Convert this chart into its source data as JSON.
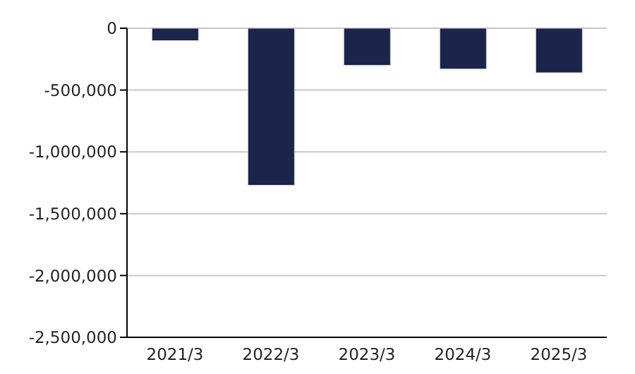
{
  "chart_data": {
    "type": "bar",
    "categories": [
      "2021/3",
      "2022/3",
      "2023/3",
      "2024/3",
      "2025/3"
    ],
    "values": [
      -100000,
      -1270000,
      -300000,
      -330000,
      -360000
    ],
    "color": "#1b2549",
    "ylim": [
      -2500000,
      0
    ],
    "yticks": [
      {
        "value": -2500000,
        "label": "-2,500,000"
      },
      {
        "value": -2000000,
        "label": "-2,000,000"
      },
      {
        "value": -1500000,
        "label": "-1,500,000"
      },
      {
        "value": -1000000,
        "label": "-1,000,000"
      },
      {
        "value": -500000,
        "label": "-500,000"
      },
      0
    ],
    "grid": "y"
  }
}
